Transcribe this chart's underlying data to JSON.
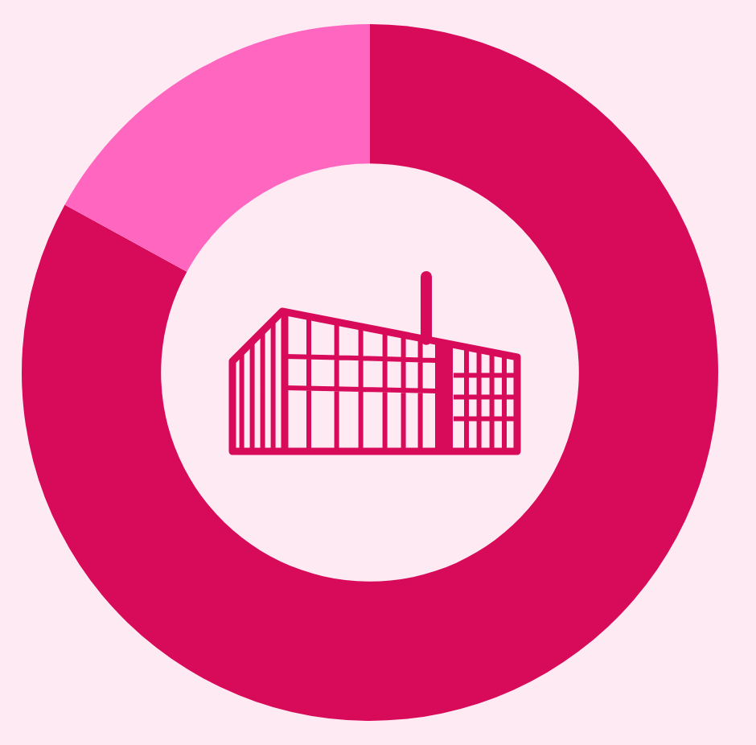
{
  "chart_data": {
    "type": "donut",
    "categories": [
      null,
      null
    ],
    "values": [
      83,
      17
    ],
    "colors": [
      "#d80a5a",
      "#ff66bf"
    ]
  }
}
